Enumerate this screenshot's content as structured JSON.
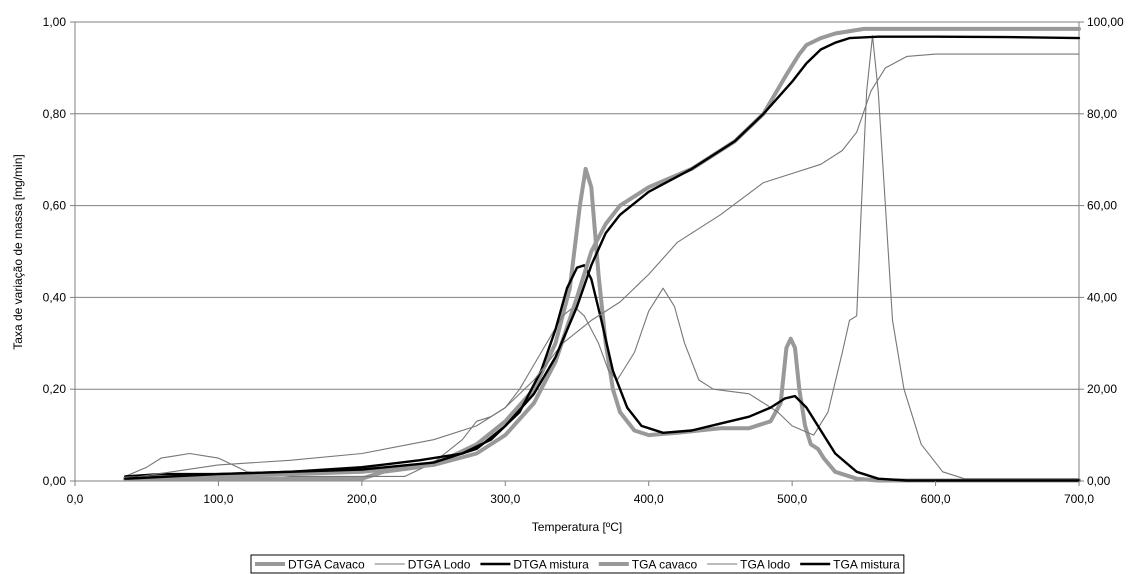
{
  "chart_data": {
    "type": "line",
    "title": "",
    "xlabel": "Temperatura [ºC]",
    "ylabel": "Taxa de variação de massa [mg/min]",
    "xlim": [
      0,
      700
    ],
    "ylim": [
      0,
      1
    ],
    "y2lim": [
      0,
      100
    ],
    "x_ticks": [
      "0,0",
      "100,0",
      "200,0",
      "300,0",
      "400,0",
      "500,0",
      "600,0",
      "700,0"
    ],
    "y_ticks": [
      "0,00",
      "0,20",
      "0,40",
      "0,60",
      "0,80",
      "1,00"
    ],
    "y2_ticks": [
      "0,00",
      "20,00",
      "40,00",
      "60,00",
      "80,00",
      "100,00"
    ],
    "grid": true,
    "legend_position": "bottom",
    "series": [
      {
        "name": "DTGA Cavaco",
        "axis": "left",
        "color": "#999999",
        "width": "thick",
        "points": [
          [
            35,
            0.005
          ],
          [
            100,
            0.005
          ],
          [
            200,
            0.005
          ],
          [
            215,
            0.02
          ],
          [
            240,
            0.03
          ],
          [
            260,
            0.05
          ],
          [
            280,
            0.08
          ],
          [
            300,
            0.13
          ],
          [
            320,
            0.2
          ],
          [
            335,
            0.3
          ],
          [
            345,
            0.42
          ],
          [
            352,
            0.6
          ],
          [
            356,
            0.68
          ],
          [
            360,
            0.64
          ],
          [
            365,
            0.45
          ],
          [
            370,
            0.3
          ],
          [
            375,
            0.2
          ],
          [
            380,
            0.15
          ],
          [
            390,
            0.11
          ],
          [
            400,
            0.1
          ],
          [
            420,
            0.105
          ],
          [
            450,
            0.115
          ],
          [
            470,
            0.115
          ],
          [
            485,
            0.13
          ],
          [
            492,
            0.17
          ],
          [
            496,
            0.29
          ],
          [
            499,
            0.31
          ],
          [
            502,
            0.29
          ],
          [
            505,
            0.2
          ],
          [
            509,
            0.12
          ],
          [
            513,
            0.08
          ],
          [
            518,
            0.07
          ],
          [
            522,
            0.05
          ],
          [
            530,
            0.02
          ],
          [
            545,
            0.005
          ],
          [
            560,
            0.001
          ],
          [
            700,
            0.001
          ]
        ]
      },
      {
        "name": "DTGA Lodo",
        "axis": "left",
        "color": "#777777",
        "width": "thin",
        "points": [
          [
            35,
            0.01
          ],
          [
            50,
            0.03
          ],
          [
            60,
            0.05
          ],
          [
            70,
            0.055
          ],
          [
            80,
            0.06
          ],
          [
            90,
            0.055
          ],
          [
            100,
            0.05
          ],
          [
            110,
            0.035
          ],
          [
            120,
            0.02
          ],
          [
            150,
            0.01
          ],
          [
            200,
            0.01
          ],
          [
            230,
            0.01
          ],
          [
            250,
            0.04
          ],
          [
            270,
            0.09
          ],
          [
            280,
            0.13
          ],
          [
            290,
            0.14
          ],
          [
            300,
            0.16
          ],
          [
            310,
            0.2
          ],
          [
            325,
            0.28
          ],
          [
            340,
            0.36
          ],
          [
            348,
            0.38
          ],
          [
            355,
            0.36
          ],
          [
            365,
            0.3
          ],
          [
            372,
            0.24
          ],
          [
            378,
            0.22
          ],
          [
            390,
            0.28
          ],
          [
            400,
            0.37
          ],
          [
            410,
            0.42
          ],
          [
            418,
            0.38
          ],
          [
            425,
            0.3
          ],
          [
            435,
            0.22
          ],
          [
            445,
            0.2
          ],
          [
            470,
            0.19
          ],
          [
            490,
            0.15
          ],
          [
            500,
            0.12
          ],
          [
            515,
            0.1
          ],
          [
            525,
            0.15
          ],
          [
            535,
            0.28
          ],
          [
            540,
            0.35
          ],
          [
            545,
            0.36
          ],
          [
            548,
            0.58
          ],
          [
            552,
            0.85
          ],
          [
            556,
            0.97
          ],
          [
            560,
            0.85
          ],
          [
            565,
            0.6
          ],
          [
            570,
            0.35
          ],
          [
            578,
            0.2
          ],
          [
            590,
            0.08
          ],
          [
            605,
            0.02
          ],
          [
            620,
            0.005
          ],
          [
            700,
            0.005
          ]
        ]
      },
      {
        "name": "DTGA mistura",
        "axis": "left",
        "color": "#000000",
        "width": "medium",
        "points": [
          [
            35,
            0.01
          ],
          [
            60,
            0.015
          ],
          [
            100,
            0.015
          ],
          [
            150,
            0.02
          ],
          [
            200,
            0.03
          ],
          [
            240,
            0.045
          ],
          [
            270,
            0.06
          ],
          [
            290,
            0.09
          ],
          [
            310,
            0.15
          ],
          [
            325,
            0.24
          ],
          [
            335,
            0.33
          ],
          [
            343,
            0.42
          ],
          [
            350,
            0.465
          ],
          [
            355,
            0.47
          ],
          [
            360,
            0.44
          ],
          [
            367,
            0.35
          ],
          [
            375,
            0.24
          ],
          [
            385,
            0.16
          ],
          [
            395,
            0.12
          ],
          [
            410,
            0.105
          ],
          [
            430,
            0.11
          ],
          [
            450,
            0.125
          ],
          [
            470,
            0.14
          ],
          [
            485,
            0.16
          ],
          [
            495,
            0.18
          ],
          [
            502,
            0.185
          ],
          [
            510,
            0.16
          ],
          [
            520,
            0.11
          ],
          [
            530,
            0.06
          ],
          [
            545,
            0.02
          ],
          [
            560,
            0.005
          ],
          [
            580,
            0.001
          ],
          [
            700,
            0.001
          ]
        ]
      },
      {
        "name": "TGA cavaco",
        "axis": "right",
        "color": "#999999",
        "width": "thick",
        "points": [
          [
            35,
            0.5
          ],
          [
            100,
            1
          ],
          [
            200,
            2
          ],
          [
            250,
            3.5
          ],
          [
            280,
            6
          ],
          [
            300,
            10
          ],
          [
            320,
            17
          ],
          [
            335,
            26
          ],
          [
            350,
            40
          ],
          [
            360,
            50
          ],
          [
            370,
            56
          ],
          [
            380,
            60
          ],
          [
            400,
            64
          ],
          [
            430,
            68
          ],
          [
            460,
            74
          ],
          [
            480,
            80
          ],
          [
            495,
            88
          ],
          [
            505,
            93
          ],
          [
            510,
            95
          ],
          [
            520,
            96.5
          ],
          [
            530,
            97.5
          ],
          [
            550,
            98.5
          ],
          [
            600,
            98.5
          ],
          [
            700,
            98.5
          ]
        ]
      },
      {
        "name": "TGA lodo",
        "axis": "right",
        "color": "#777777",
        "width": "thin",
        "points": [
          [
            35,
            0.5
          ],
          [
            100,
            3.5
          ],
          [
            150,
            4.5
          ],
          [
            200,
            6
          ],
          [
            250,
            9
          ],
          [
            280,
            12
          ],
          [
            300,
            16
          ],
          [
            320,
            22
          ],
          [
            340,
            30
          ],
          [
            360,
            35
          ],
          [
            380,
            39
          ],
          [
            400,
            45
          ],
          [
            420,
            52
          ],
          [
            450,
            58
          ],
          [
            480,
            65
          ],
          [
            500,
            67
          ],
          [
            520,
            69
          ],
          [
            535,
            72
          ],
          [
            545,
            76
          ],
          [
            555,
            85
          ],
          [
            565,
            90
          ],
          [
            580,
            92.5
          ],
          [
            600,
            93
          ],
          [
            700,
            93
          ]
        ]
      },
      {
        "name": "TGA mistura",
        "axis": "right",
        "color": "#000000",
        "width": "medium",
        "points": [
          [
            35,
            0.5
          ],
          [
            100,
            1.5
          ],
          [
            200,
            2.5
          ],
          [
            250,
            4
          ],
          [
            280,
            7
          ],
          [
            300,
            12
          ],
          [
            320,
            19
          ],
          [
            335,
            27
          ],
          [
            350,
            38
          ],
          [
            360,
            47
          ],
          [
            370,
            54
          ],
          [
            380,
            58
          ],
          [
            400,
            63
          ],
          [
            430,
            68
          ],
          [
            460,
            74
          ],
          [
            480,
            80
          ],
          [
            500,
            87
          ],
          [
            510,
            91
          ],
          [
            520,
            94
          ],
          [
            530,
            95.5
          ],
          [
            540,
            96.5
          ],
          [
            560,
            96.8
          ],
          [
            600,
            96.8
          ],
          [
            650,
            96.7
          ],
          [
            700,
            96.5
          ]
        ]
      }
    ]
  }
}
